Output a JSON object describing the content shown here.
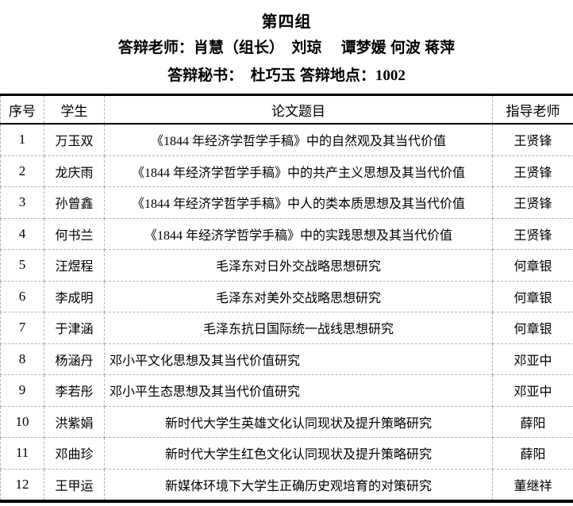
{
  "colors": {
    "text": "#000000",
    "background": "#ffffff",
    "border_strong": "#000000",
    "border_dashed": "#b3b3b3"
  },
  "header": {
    "group_title": "第四组",
    "teachers_line": "答辩老师：肖慧（组长）　刘琼　 谭梦媛 何波 蒋萍",
    "secretary_prefix": "答辩秘书：　杜巧玉 答辩地点：",
    "room_number": "1002"
  },
  "table": {
    "columns": [
      {
        "key": "index",
        "label": "序号"
      },
      {
        "key": "student",
        "label": "学生"
      },
      {
        "key": "title",
        "label": "论文题目"
      },
      {
        "key": "advisor",
        "label": "指导老师"
      }
    ],
    "rows": [
      {
        "index": "1",
        "student": "万玉双",
        "title": "《1844 年经济学哲学手稿》中的自然观及其当代价值",
        "advisor": "王贤锋",
        "title_align": "center"
      },
      {
        "index": "2",
        "student": "龙庆雨",
        "title": "《1844 年经济学哲学手稿》中的共产主义思想及其当代价值",
        "advisor": "王贤锋",
        "title_align": "center"
      },
      {
        "index": "3",
        "student": "孙曾鑫",
        "title": "《1844 年经济学哲学手稿》中人的类本质思想及其当代价值",
        "advisor": "王贤锋",
        "title_align": "center"
      },
      {
        "index": "4",
        "student": "何书兰",
        "title": "《1844 年经济学哲学手稿》中的实践思想及其当代价值",
        "advisor": "王贤锋",
        "title_align": "center"
      },
      {
        "index": "5",
        "student": "汪煜程",
        "title": "毛泽东对日外交战略思想研究",
        "advisor": "何章银",
        "title_align": "center"
      },
      {
        "index": "6",
        "student": "李成明",
        "title": "毛泽东对美外交战略思想研究",
        "advisor": "何章银",
        "title_align": "center"
      },
      {
        "index": "7",
        "student": "于津涵",
        "title": "毛泽东抗日国际统一战线思想研究",
        "advisor": "何章银",
        "title_align": "center"
      },
      {
        "index": "8",
        "student": "杨涵丹",
        "title": "邓小平文化思想及其当代价值研究",
        "advisor": "邓亚中",
        "title_align": "left"
      },
      {
        "index": "9",
        "student": "李若彤",
        "title": "邓小平生态思想及其当代价值研究",
        "advisor": "邓亚中",
        "title_align": "left"
      },
      {
        "index": "10",
        "student": "洪紫娟",
        "title": "新时代大学生英雄文化认同现状及提升策略研究",
        "advisor": "薛阳",
        "title_align": "center"
      },
      {
        "index": "11",
        "student": "邓曲珍",
        "title": "新时代大学生红色文化认同现状及提升策略研究",
        "advisor": "薛阳",
        "title_align": "center"
      },
      {
        "index": "12",
        "student": "王甲运",
        "title": "新媒体环境下大学生正确历史观培育的对策研究",
        "advisor": "董继祥",
        "title_align": "center"
      }
    ]
  }
}
